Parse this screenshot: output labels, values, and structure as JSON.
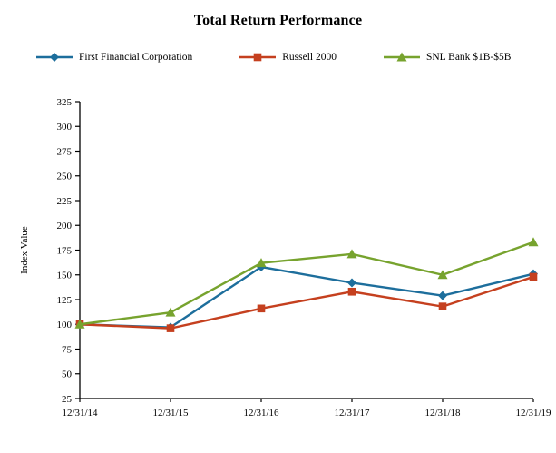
{
  "page": {
    "title": "Total Return Performance"
  },
  "chart_data": {
    "type": "line",
    "title": "Total Return Performance",
    "xlabel": "",
    "ylabel": "Index Value",
    "ylim": [
      25,
      325
    ],
    "ytick_step": 25,
    "grid": false,
    "legend_position": "top",
    "categories": [
      "12/31/14",
      "12/31/15",
      "12/31/16",
      "12/31/17",
      "12/31/18",
      "12/31/19"
    ],
    "series": [
      {
        "name": "First Financial Corporation",
        "marker": "diamond",
        "color": "#1D6E9C",
        "values": [
          100,
          97,
          158,
          142,
          129,
          151
        ]
      },
      {
        "name": "Russell 2000",
        "marker": "square",
        "color": "#C5401F",
        "values": [
          100,
          96,
          116,
          133,
          118,
          148
        ]
      },
      {
        "name": "SNL Bank $1B-$5B",
        "marker": "triangle",
        "color": "#77A32E",
        "values": [
          100,
          112,
          162,
          171,
          150,
          183
        ]
      }
    ],
    "axis_color": "#000000",
    "tick_font_size": 11
  }
}
